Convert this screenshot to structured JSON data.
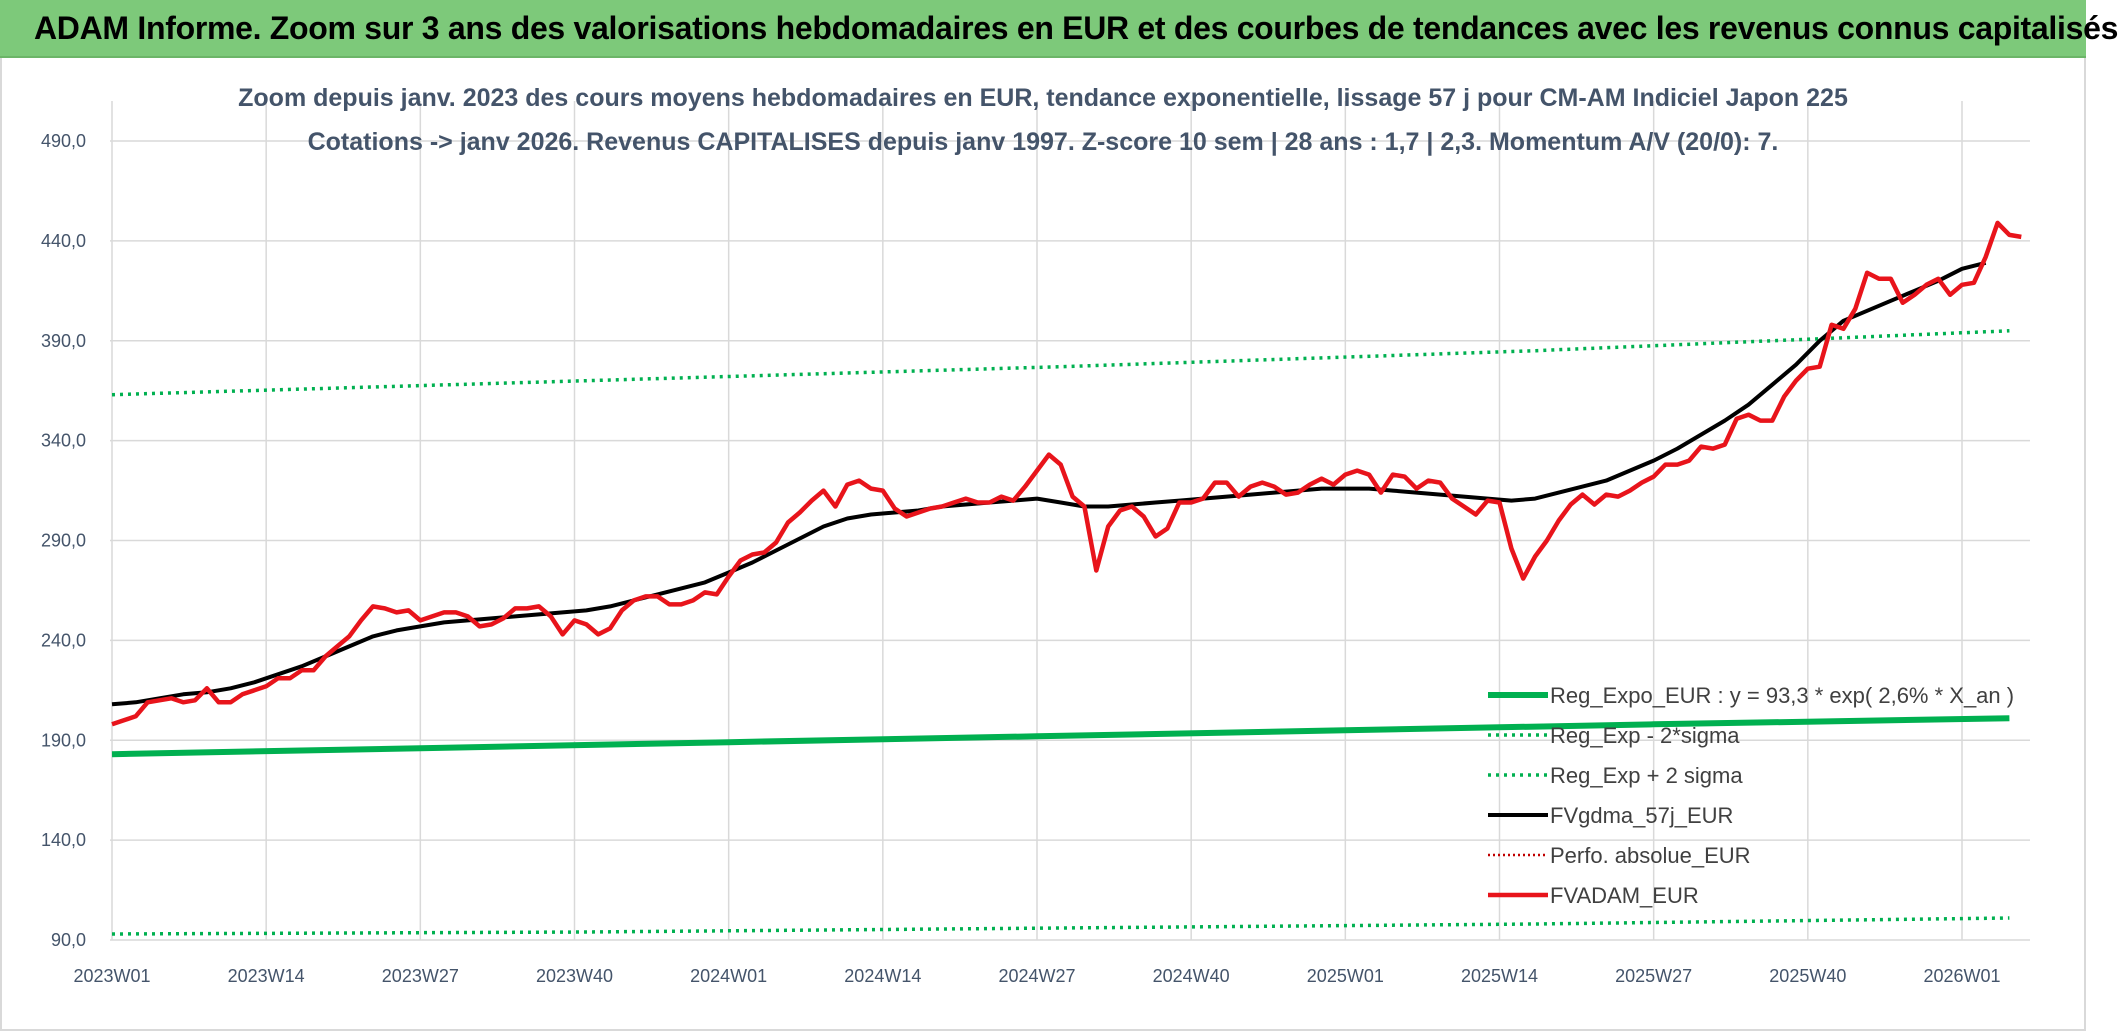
{
  "banner": {
    "title": "ADAM Informe. Zoom sur 3 ans des valorisations hebdomadaires en EUR et des courbes de tendances avec les revenus connus capitalisés"
  },
  "colors": {
    "banner_bg": "#7dc97a",
    "reg_expo": "#00b050",
    "fvgdma": "#000000",
    "fvadam": "#e8141b",
    "perfo": "#c00000",
    "grid": "#d9d9d9"
  },
  "chart_data": {
    "type": "line",
    "title": "Zoom depuis janv. 2023 des cours moyens hebdomadaires en EUR, tendance exponentielle, lissage 57 j pour CM-AM Indiciel Japon 225",
    "subtitle": "Cotations -> janv 2026. Revenus CAPITALISES depuis janv 1997. Z-score 10 sem | 28 ans : 1,7 | 2,3. Momentum A/V (20/0): 7.",
    "ylim": [
      90,
      510
    ],
    "yticks": [
      "90,0",
      "140,0",
      "190,0",
      "240,0",
      "290,0",
      "340,0",
      "390,0",
      "440,0",
      "490,0"
    ],
    "ytick_values": [
      90,
      140,
      190,
      240,
      290,
      340,
      390,
      440,
      490
    ],
    "xlim": [
      0,
      157
    ],
    "xticks": [
      "2023W01",
      "2023W14",
      "2023W27",
      "2023W40",
      "2024W01",
      "2024W14",
      "2024W27",
      "2024W40",
      "2025W01",
      "2025W14",
      "2025W27",
      "2025W40",
      "2026W01"
    ],
    "xtick_values": [
      0,
      13,
      26,
      39,
      52,
      65,
      78,
      91,
      104,
      117,
      130,
      143,
      156
    ],
    "grid": true,
    "legend_position": "bottom-right",
    "series": [
      {
        "name": "Reg_Expo_EUR : y = 93,3 * exp( 2,6% *  X_an )",
        "style": "solid-thick",
        "points": [
          [
            0,
            183
          ],
          [
            26,
            186
          ],
          [
            52,
            189
          ],
          [
            78,
            192
          ],
          [
            104,
            195
          ],
          [
            130,
            198
          ],
          [
            160,
            201
          ]
        ]
      },
      {
        "name": "Reg_Exp - 2*sigma",
        "style": "dotted-green",
        "points": [
          [
            0,
            93
          ],
          [
            40,
            94
          ],
          [
            80,
            96
          ],
          [
            120,
            98
          ],
          [
            160,
            101
          ]
        ]
      },
      {
        "name": "Reg_Exp + 2 sigma",
        "style": "dotted-green",
        "points": [
          [
            0,
            363
          ],
          [
            40,
            370
          ],
          [
            80,
            377
          ],
          [
            120,
            385
          ],
          [
            160,
            395
          ]
        ]
      },
      {
        "name": "FVgdma_57j_EUR",
        "style": "solid-black",
        "points": [
          [
            0,
            208
          ],
          [
            2,
            209
          ],
          [
            4,
            211
          ],
          [
            6,
            213
          ],
          [
            8,
            214
          ],
          [
            10,
            216
          ],
          [
            12,
            219
          ],
          [
            14,
            223
          ],
          [
            16,
            227
          ],
          [
            18,
            232
          ],
          [
            20,
            237
          ],
          [
            22,
            242
          ],
          [
            24,
            245
          ],
          [
            26,
            247
          ],
          [
            28,
            249
          ],
          [
            30,
            250
          ],
          [
            32,
            251
          ],
          [
            34,
            252
          ],
          [
            36,
            253
          ],
          [
            38,
            254
          ],
          [
            40,
            255
          ],
          [
            42,
            257
          ],
          [
            44,
            260
          ],
          [
            46,
            263
          ],
          [
            48,
            266
          ],
          [
            50,
            269
          ],
          [
            52,
            274
          ],
          [
            54,
            279
          ],
          [
            56,
            285
          ],
          [
            58,
            291
          ],
          [
            60,
            297
          ],
          [
            62,
            301
          ],
          [
            64,
            303
          ],
          [
            66,
            304
          ],
          [
            68,
            305
          ],
          [
            70,
            307
          ],
          [
            72,
            308
          ],
          [
            74,
            309
          ],
          [
            76,
            310
          ],
          [
            78,
            311
          ],
          [
            80,
            309
          ],
          [
            82,
            307
          ],
          [
            84,
            307
          ],
          [
            86,
            308
          ],
          [
            88,
            309
          ],
          [
            90,
            310
          ],
          [
            92,
            311
          ],
          [
            94,
            312
          ],
          [
            96,
            313
          ],
          [
            98,
            314
          ],
          [
            100,
            315
          ],
          [
            102,
            316
          ],
          [
            104,
            316
          ],
          [
            106,
            316
          ],
          [
            108,
            315
          ],
          [
            110,
            314
          ],
          [
            112,
            313
          ],
          [
            114,
            312
          ],
          [
            116,
            311
          ],
          [
            118,
            310
          ],
          [
            120,
            311
          ],
          [
            122,
            314
          ],
          [
            124,
            317
          ],
          [
            126,
            320
          ],
          [
            128,
            325
          ],
          [
            130,
            330
          ],
          [
            132,
            336
          ],
          [
            134,
            343
          ],
          [
            136,
            350
          ],
          [
            138,
            358
          ],
          [
            140,
            368
          ],
          [
            142,
            378
          ],
          [
            144,
            390
          ],
          [
            146,
            400
          ],
          [
            148,
            405
          ],
          [
            150,
            410
          ],
          [
            152,
            415
          ],
          [
            154,
            420
          ],
          [
            156,
            426
          ],
          [
            158,
            429
          ]
        ]
      },
      {
        "name": "Perfo. absolue_EUR",
        "style": "dotted-red",
        "points": []
      },
      {
        "name": "FVADAM_EUR",
        "style": "solid-red",
        "points": [
          [
            0,
            198
          ],
          [
            1,
            200
          ],
          [
            2,
            202
          ],
          [
            3,
            209
          ],
          [
            4,
            210
          ],
          [
            5,
            211
          ],
          [
            6,
            209
          ],
          [
            7,
            210
          ],
          [
            8,
            216
          ],
          [
            9,
            209
          ],
          [
            10,
            209
          ],
          [
            11,
            213
          ],
          [
            12,
            215
          ],
          [
            13,
            217
          ],
          [
            14,
            221
          ],
          [
            15,
            221
          ],
          [
            16,
            225
          ],
          [
            17,
            225
          ],
          [
            18,
            232
          ],
          [
            19,
            237
          ],
          [
            20,
            242
          ],
          [
            21,
            250
          ],
          [
            22,
            257
          ],
          [
            23,
            256
          ],
          [
            24,
            254
          ],
          [
            25,
            255
          ],
          [
            26,
            250
          ],
          [
            27,
            252
          ],
          [
            28,
            254
          ],
          [
            29,
            254
          ],
          [
            30,
            252
          ],
          [
            31,
            247
          ],
          [
            32,
            248
          ],
          [
            33,
            251
          ],
          [
            34,
            256
          ],
          [
            35,
            256
          ],
          [
            36,
            257
          ],
          [
            37,
            252
          ],
          [
            38,
            243
          ],
          [
            39,
            250
          ],
          [
            40,
            248
          ],
          [
            41,
            243
          ],
          [
            42,
            246
          ],
          [
            43,
            255
          ],
          [
            44,
            260
          ],
          [
            45,
            262
          ],
          [
            46,
            262
          ],
          [
            47,
            258
          ],
          [
            48,
            258
          ],
          [
            49,
            260
          ],
          [
            50,
            264
          ],
          [
            51,
            263
          ],
          [
            52,
            272
          ],
          [
            53,
            280
          ],
          [
            54,
            283
          ],
          [
            55,
            284
          ],
          [
            56,
            289
          ],
          [
            57,
            299
          ],
          [
            58,
            304
          ],
          [
            59,
            310
          ],
          [
            60,
            315
          ],
          [
            61,
            307
          ],
          [
            62,
            318
          ],
          [
            63,
            320
          ],
          [
            64,
            316
          ],
          [
            65,
            315
          ],
          [
            66,
            306
          ],
          [
            67,
            302
          ],
          [
            68,
            304
          ],
          [
            69,
            306
          ],
          [
            70,
            307
          ],
          [
            71,
            309
          ],
          [
            72,
            311
          ],
          [
            73,
            309
          ],
          [
            74,
            309
          ],
          [
            75,
            312
          ],
          [
            76,
            310
          ],
          [
            77,
            317
          ],
          [
            78,
            325
          ],
          [
            79,
            333
          ],
          [
            80,
            328
          ],
          [
            81,
            312
          ],
          [
            82,
            307
          ],
          [
            83,
            275
          ],
          [
            84,
            297
          ],
          [
            85,
            305
          ],
          [
            86,
            307
          ],
          [
            87,
            302
          ],
          [
            88,
            292
          ],
          [
            89,
            296
          ],
          [
            90,
            309
          ],
          [
            91,
            309
          ],
          [
            92,
            311
          ],
          [
            93,
            319
          ],
          [
            94,
            319
          ],
          [
            95,
            312
          ],
          [
            96,
            317
          ],
          [
            97,
            319
          ],
          [
            98,
            317
          ],
          [
            99,
            313
          ],
          [
            100,
            314
          ],
          [
            101,
            318
          ],
          [
            102,
            321
          ],
          [
            103,
            318
          ],
          [
            104,
            323
          ],
          [
            105,
            325
          ],
          [
            106,
            323
          ],
          [
            107,
            314
          ],
          [
            108,
            323
          ],
          [
            109,
            322
          ],
          [
            110,
            316
          ],
          [
            111,
            320
          ],
          [
            112,
            319
          ],
          [
            113,
            311
          ],
          [
            114,
            307
          ],
          [
            115,
            303
          ],
          [
            116,
            310
          ],
          [
            117,
            309
          ],
          [
            118,
            286
          ],
          [
            119,
            271
          ],
          [
            120,
            282
          ],
          [
            121,
            290
          ],
          [
            122,
            300
          ],
          [
            123,
            308
          ],
          [
            124,
            313
          ],
          [
            125,
            308
          ],
          [
            126,
            313
          ],
          [
            127,
            312
          ],
          [
            128,
            315
          ],
          [
            129,
            319
          ],
          [
            130,
            322
          ],
          [
            131,
            328
          ],
          [
            132,
            328
          ],
          [
            133,
            330
          ],
          [
            134,
            337
          ],
          [
            135,
            336
          ],
          [
            136,
            338
          ],
          [
            137,
            351
          ],
          [
            138,
            353
          ],
          [
            139,
            350
          ],
          [
            140,
            350
          ],
          [
            141,
            362
          ],
          [
            142,
            370
          ],
          [
            143,
            376
          ],
          [
            144,
            377
          ],
          [
            145,
            398
          ],
          [
            146,
            396
          ],
          [
            147,
            406
          ],
          [
            148,
            424
          ],
          [
            149,
            421
          ],
          [
            150,
            421
          ],
          [
            151,
            409
          ],
          [
            152,
            413
          ],
          [
            153,
            418
          ],
          [
            154,
            421
          ],
          [
            155,
            413
          ],
          [
            156,
            418
          ],
          [
            157,
            419
          ],
          [
            158,
            432
          ],
          [
            159,
            449
          ],
          [
            160,
            443
          ],
          [
            161,
            442
          ]
        ]
      }
    ]
  }
}
